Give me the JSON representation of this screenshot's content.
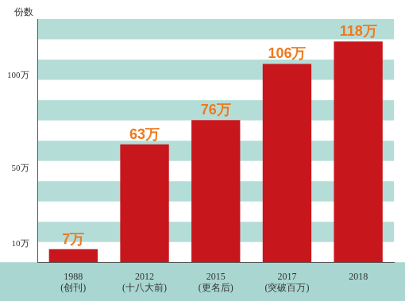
{
  "chart_data": {
    "type": "bar",
    "y_label": "份数",
    "categories": [
      "1988\n(创刊)",
      "2012\n(十八大前)",
      "2015\n(更名后)",
      "2017\n(突破百万)",
      "2018"
    ],
    "values": [
      7,
      63,
      76,
      106,
      118
    ],
    "value_labels": [
      "7万",
      "63万",
      "76万",
      "106万",
      "118万"
    ],
    "data_labels": true,
    "color": "#c8161d",
    "ylim": [
      0,
      130
    ],
    "yticks": [
      {
        "value": 10,
        "label": "10万"
      },
      {
        "value": 50,
        "label": "50万"
      },
      {
        "value": 100,
        "label": "100万"
      }
    ],
    "grid": false
  }
}
